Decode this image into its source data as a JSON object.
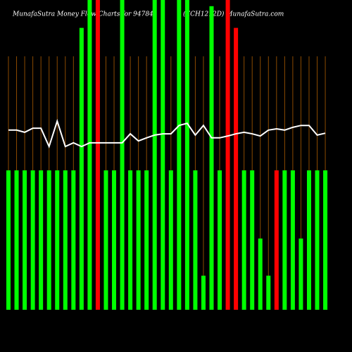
{
  "chart_data": {
    "type": "bar",
    "title": "MunafaSutra  Money Flow  Charts for 947841",
    "subtitle": "(ECH1212D) MunafaSutra.com",
    "categories": [
      null,
      null,
      null,
      null,
      null,
      null,
      null,
      null,
      null,
      null,
      null,
      null,
      null,
      null,
      null,
      null,
      null,
      null,
      null,
      null,
      null,
      null,
      null,
      null,
      null,
      null,
      null,
      null,
      null,
      null,
      null,
      null,
      null,
      null,
      null,
      null,
      null,
      null,
      null,
      null
    ],
    "values": [
      45,
      45,
      45,
      45,
      45,
      45,
      45,
      45,
      45,
      91,
      100,
      100,
      45,
      45,
      100,
      45,
      45,
      45,
      100,
      100,
      45,
      100,
      100,
      45,
      11,
      98,
      45,
      100,
      91,
      45,
      45,
      23,
      11,
      45,
      45,
      45,
      23,
      45,
      45,
      45
    ],
    "colors": [
      "#00ff00",
      "#00ff00",
      "#00ff00",
      "#00ff00",
      "#00ff00",
      "#00ff00",
      "#00ff00",
      "#00ff00",
      "#00ff00",
      "#00ff00",
      "#00ff00",
      "#ff0000",
      "#00ff00",
      "#00ff00",
      "#00ff00",
      "#00ff00",
      "#00ff00",
      "#00ff00",
      "#00ff00",
      "#00ff00",
      "#00ff00",
      "#00ff00",
      "#00ff00",
      "#00ff00",
      "#00ff00",
      "#00ff00",
      "#00ff00",
      "#ff0000",
      "#ff0000",
      "#00ff00",
      "#00ff00",
      "#00ff00",
      "#00ff00",
      "#ff0000",
      "#00ff00",
      "#00ff00",
      "#00ff00",
      "#00ff00",
      "#00ff00",
      "#00ff00"
    ],
    "line": {
      "color": "#ffffff",
      "values": [
        58,
        58,
        57.3,
        58.6,
        58.6,
        52.7,
        60.9,
        52.7,
        53.9,
        52.7,
        53.9,
        53.9,
        53.9,
        53.9,
        53.9,
        56.8,
        54.5,
        55.5,
        56.4,
        56.8,
        56.8,
        59.5,
        60.2,
        56.4,
        59.5,
        55.5,
        55.5,
        56.1,
        56.8,
        57.3,
        56.8,
        56.1,
        58,
        58.4,
        58,
        58.9,
        59.5,
        59.5,
        56.4,
        57
      ]
    },
    "ylim": [
      0,
      100
    ]
  }
}
